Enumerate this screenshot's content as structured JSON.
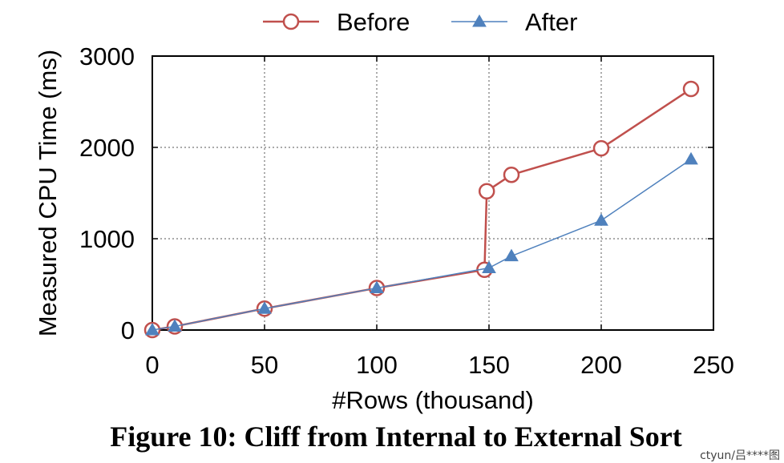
{
  "chart_data": {
    "type": "line",
    "xlabel": "#Rows (thousand)",
    "ylabel": "Measured CPU Time (ms)",
    "xlim": [
      0,
      250
    ],
    "ylim": [
      0,
      3000
    ],
    "x_ticks": [
      0,
      50,
      100,
      150,
      200,
      250
    ],
    "y_ticks": [
      0,
      1000,
      2000,
      3000
    ],
    "grid": true,
    "legend_position": "top",
    "series": [
      {
        "name": "Before",
        "color": "#c0504d",
        "marker": "open-circle",
        "points": [
          {
            "x": 0,
            "y": 0
          },
          {
            "x": 10,
            "y": 40
          },
          {
            "x": 50,
            "y": 235
          },
          {
            "x": 100,
            "y": 460
          },
          {
            "x": 148,
            "y": 660
          },
          {
            "x": 149,
            "y": 1520
          },
          {
            "x": 160,
            "y": 1700
          },
          {
            "x": 200,
            "y": 1990
          },
          {
            "x": 240,
            "y": 2640
          }
        ]
      },
      {
        "name": "After",
        "color": "#4f81bd",
        "marker": "filled-triangle",
        "points": [
          {
            "x": 0,
            "y": 0
          },
          {
            "x": 10,
            "y": 40
          },
          {
            "x": 50,
            "y": 235
          },
          {
            "x": 100,
            "y": 460
          },
          {
            "x": 150,
            "y": 680
          },
          {
            "x": 160,
            "y": 810
          },
          {
            "x": 200,
            "y": 1200
          },
          {
            "x": 240,
            "y": 1870
          }
        ]
      }
    ]
  },
  "caption": "Figure 10:  Cliff from Internal to External Sort",
  "watermark": "ctyun/吕****图"
}
